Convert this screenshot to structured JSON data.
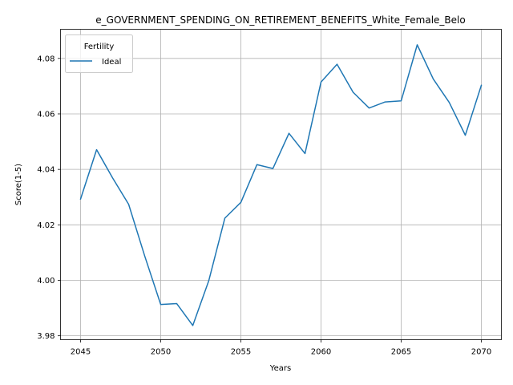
{
  "chart_data": {
    "type": "line",
    "title": "e_GOVERNMENT_SPENDING_ON_RETIREMENT_BENEFITS_White_Female_Belo",
    "xlabel": "Years",
    "ylabel": "Score(1-5)",
    "xlim": [
      2043.75,
      2071.25
    ],
    "ylim": [
      3.9786,
      4.0905
    ],
    "xticks": [
      2045,
      2050,
      2055,
      2060,
      2065,
      2070
    ],
    "yticks": [
      3.98,
      4.0,
      4.02,
      4.04,
      4.06,
      4.08
    ],
    "ytick_labels": [
      "3.98",
      "4.00",
      "4.02",
      "4.04",
      "4.06",
      "4.08"
    ],
    "grid": true,
    "legend": {
      "title": "Fertility",
      "placement": "top-left"
    },
    "series": [
      {
        "name": "Ideal",
        "color": "#1f77b4",
        "x": [
          2045,
          2046,
          2047,
          2048,
          2049,
          2050,
          2051,
          2052,
          2053,
          2054,
          2055,
          2056,
          2057,
          2058,
          2059,
          2060,
          2061,
          2062,
          2063,
          2064,
          2065,
          2066,
          2067,
          2068,
          2069,
          2070
        ],
        "y": [
          4.0293,
          4.0471,
          4.0369,
          4.0274,
          4.0088,
          3.9913,
          3.9916,
          3.9837,
          3.9999,
          4.0224,
          4.0281,
          4.0417,
          4.0403,
          4.053,
          4.0457,
          4.0715,
          4.0779,
          4.0678,
          4.0621,
          4.0643,
          4.0647,
          4.0849,
          4.0726,
          4.0641,
          4.0523,
          4.0703
        ]
      }
    ]
  }
}
